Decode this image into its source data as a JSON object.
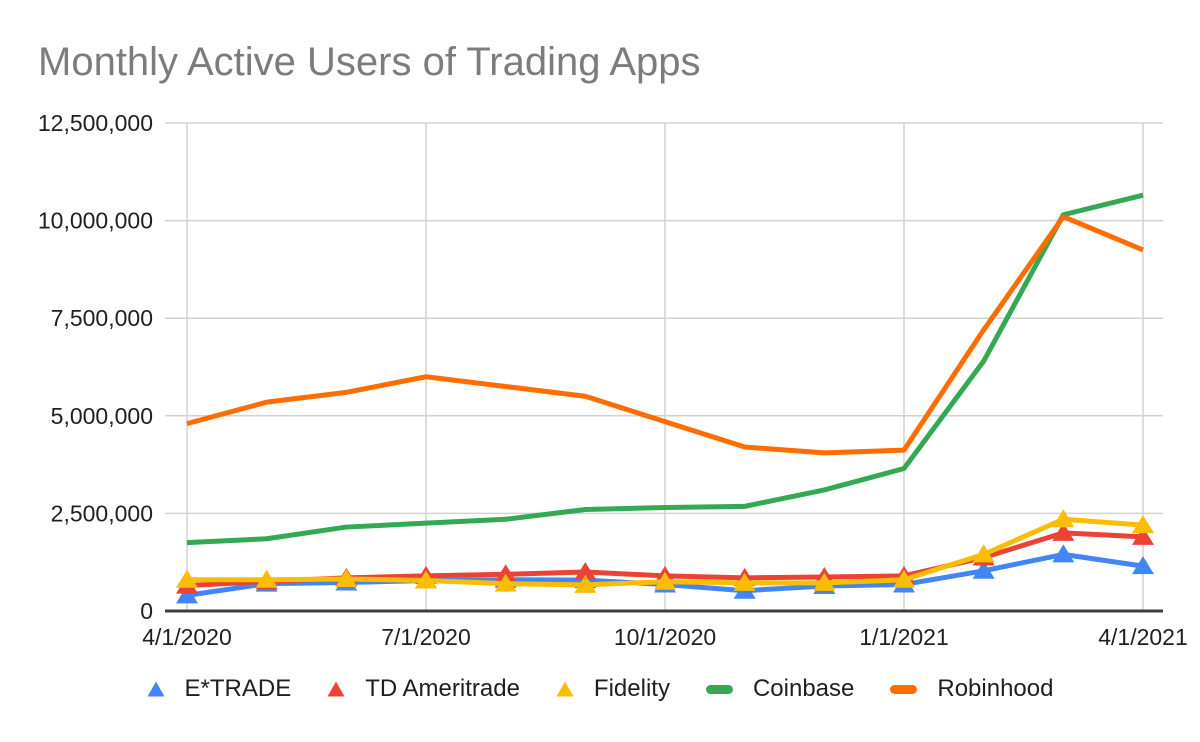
{
  "chart_data": {
    "type": "line",
    "title": "Monthly Active Users of Trading Apps",
    "xlabel": "",
    "ylabel": "",
    "x": [
      "4/1/2020",
      "5/1/2020",
      "6/1/2020",
      "7/1/2020",
      "8/1/2020",
      "9/1/2020",
      "10/1/2020",
      "11/1/2020",
      "12/1/2020",
      "1/1/2021",
      "2/1/2021",
      "3/1/2021",
      "4/1/2021"
    ],
    "x_tick_labels": [
      "4/1/2020",
      "7/1/2020",
      "10/1/2020",
      "1/1/2021",
      "4/1/2021"
    ],
    "y_tick_labels": [
      "0",
      "2,500,000",
      "5,000,000",
      "7,500,000",
      "10,000,000",
      "12,500,000"
    ],
    "y_tick_values": [
      0,
      2500000,
      5000000,
      7500000,
      10000000,
      12500000
    ],
    "ylim": [
      0,
      12500000
    ],
    "grid": true,
    "legend_position": "bottom",
    "series": [
      {
        "name": "E*TRADE",
        "color": "#4285F4",
        "marker": "triangle",
        "values": [
          400000,
          700000,
          730000,
          780000,
          800000,
          790000,
          680000,
          520000,
          640000,
          680000,
          1030000,
          1450000,
          1150000
        ]
      },
      {
        "name": "TD Ameritrade",
        "color": "#EA4335",
        "marker": "triangle",
        "values": [
          650000,
          760000,
          850000,
          900000,
          940000,
          1000000,
          900000,
          850000,
          870000,
          900000,
          1370000,
          2000000,
          1900000
        ]
      },
      {
        "name": "Fidelity",
        "color": "#FBBC04",
        "marker": "triangle",
        "values": [
          800000,
          800000,
          820000,
          780000,
          700000,
          670000,
          750000,
          720000,
          720000,
          800000,
          1450000,
          2350000,
          2200000
        ]
      },
      {
        "name": "Coinbase",
        "color": "#34A853",
        "marker": "none",
        "values": [
          1750000,
          1850000,
          2150000,
          2250000,
          2350000,
          2600000,
          2650000,
          2680000,
          3100000,
          3650000,
          6400000,
          10150000,
          10650000
        ]
      },
      {
        "name": "Robinhood",
        "color": "#FF6D01",
        "marker": "none",
        "values": [
          4800000,
          5350000,
          5600000,
          6000000,
          5750000,
          5500000,
          4850000,
          4200000,
          4050000,
          4120000,
          7200000,
          10100000,
          9250000
        ]
      }
    ]
  },
  "colors": {
    "title_text": "#7c7c7c",
    "axis_text": "#1f1f1f",
    "gridline": "#d2d2d2",
    "axis_line": "#3c3c3c",
    "background": "#ffffff"
  }
}
